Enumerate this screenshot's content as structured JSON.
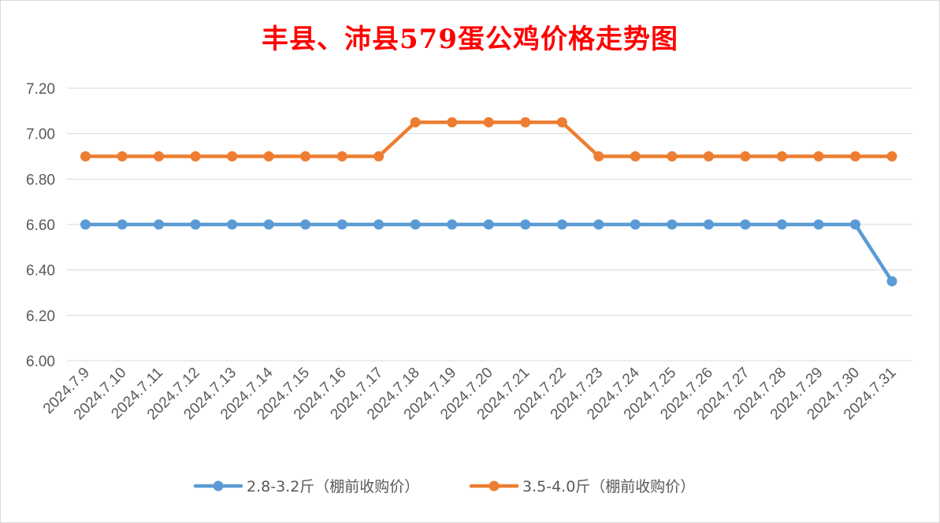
{
  "chart_data": {
    "type": "line",
    "title": "丰县、沛县579蛋公鸡价格走势图",
    "xlabel": "",
    "ylabel": "",
    "ylim": [
      6.0,
      7.2
    ],
    "yticks": [
      "6.00",
      "6.20",
      "6.40",
      "6.60",
      "6.80",
      "7.00",
      "7.20"
    ],
    "grid": true,
    "legend_position": "bottom",
    "categories": [
      "2024.7.9",
      "2024.7.10",
      "2024.7.11",
      "2024.7.12",
      "2024.7.13",
      "2024.7.14",
      "2024.7.15",
      "2024.7.16",
      "2024.7.17",
      "2024.7.18",
      "2024.7.19",
      "2024.7.20",
      "2024.7.21",
      "2024.7.22",
      "2024.7.23",
      "2024.7.24",
      "2024.7.25",
      "2024.7.26",
      "2024.7.27",
      "2024.7.28",
      "2024.7.29",
      "2024.7.30",
      "2024.7.31"
    ],
    "series": [
      {
        "name": "2.8-3.2斤（棚前收购价）",
        "color": "#5b9bd5",
        "values": [
          6.6,
          6.6,
          6.6,
          6.6,
          6.6,
          6.6,
          6.6,
          6.6,
          6.6,
          6.6,
          6.6,
          6.6,
          6.6,
          6.6,
          6.6,
          6.6,
          6.6,
          6.6,
          6.6,
          6.6,
          6.6,
          6.6,
          6.35
        ]
      },
      {
        "name": "3.5-4.0斤（棚前收购价）",
        "color": "#ed7d31",
        "values": [
          6.9,
          6.9,
          6.9,
          6.9,
          6.9,
          6.9,
          6.9,
          6.9,
          6.9,
          7.05,
          7.05,
          7.05,
          7.05,
          7.05,
          6.9,
          6.9,
          6.9,
          6.9,
          6.9,
          6.9,
          6.9,
          6.9,
          6.9
        ]
      }
    ]
  }
}
